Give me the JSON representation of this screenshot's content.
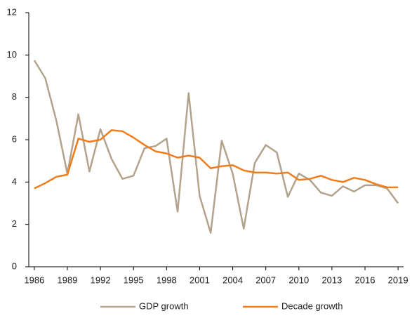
{
  "chart_data": {
    "type": "line",
    "x": [
      1986,
      1987,
      1988,
      1989,
      1990,
      1991,
      1992,
      1993,
      1994,
      1995,
      1996,
      1997,
      1998,
      1999,
      2000,
      2001,
      2002,
      2003,
      2004,
      2005,
      2006,
      2007,
      2008,
      2009,
      2010,
      2011,
      2012,
      2013,
      2014,
      2015,
      2016,
      2017,
      2018,
      2019
    ],
    "series": [
      {
        "name": "GDP growth",
        "color": "#b3a38c",
        "values": [
          9.75,
          8.9,
          6.9,
          4.4,
          7.2,
          4.5,
          6.5,
          5.1,
          4.15,
          4.3,
          5.6,
          5.7,
          6.05,
          2.6,
          8.2,
          3.35,
          1.6,
          5.95,
          4.4,
          1.8,
          4.9,
          5.75,
          5.4,
          3.3,
          4.4,
          4.1,
          3.5,
          3.35,
          3.8,
          3.55,
          3.85,
          3.85,
          3.7,
          3.0
        ]
      },
      {
        "name": "Decade growth",
        "color": "#f07c1a",
        "values": [
          3.7,
          3.95,
          4.25,
          4.35,
          6.05,
          5.9,
          6.0,
          6.45,
          6.4,
          6.1,
          5.75,
          5.45,
          5.35,
          5.15,
          5.25,
          5.15,
          4.65,
          4.75,
          4.8,
          4.55,
          4.45,
          4.45,
          4.4,
          4.45,
          4.1,
          4.15,
          4.3,
          4.1,
          4.0,
          4.2,
          4.1,
          3.9,
          3.75,
          3.75
        ]
      }
    ],
    "xlim": [
      1985.5,
      2019.5
    ],
    "xticks": [
      1986,
      1989,
      1992,
      1995,
      1998,
      2001,
      2004,
      2007,
      2010,
      2013,
      2016,
      2019
    ],
    "ylim": [
      0,
      12
    ],
    "yticks": [
      0,
      2,
      4,
      6,
      8,
      10,
      12
    ],
    "grid": false,
    "legend": "bottom"
  }
}
